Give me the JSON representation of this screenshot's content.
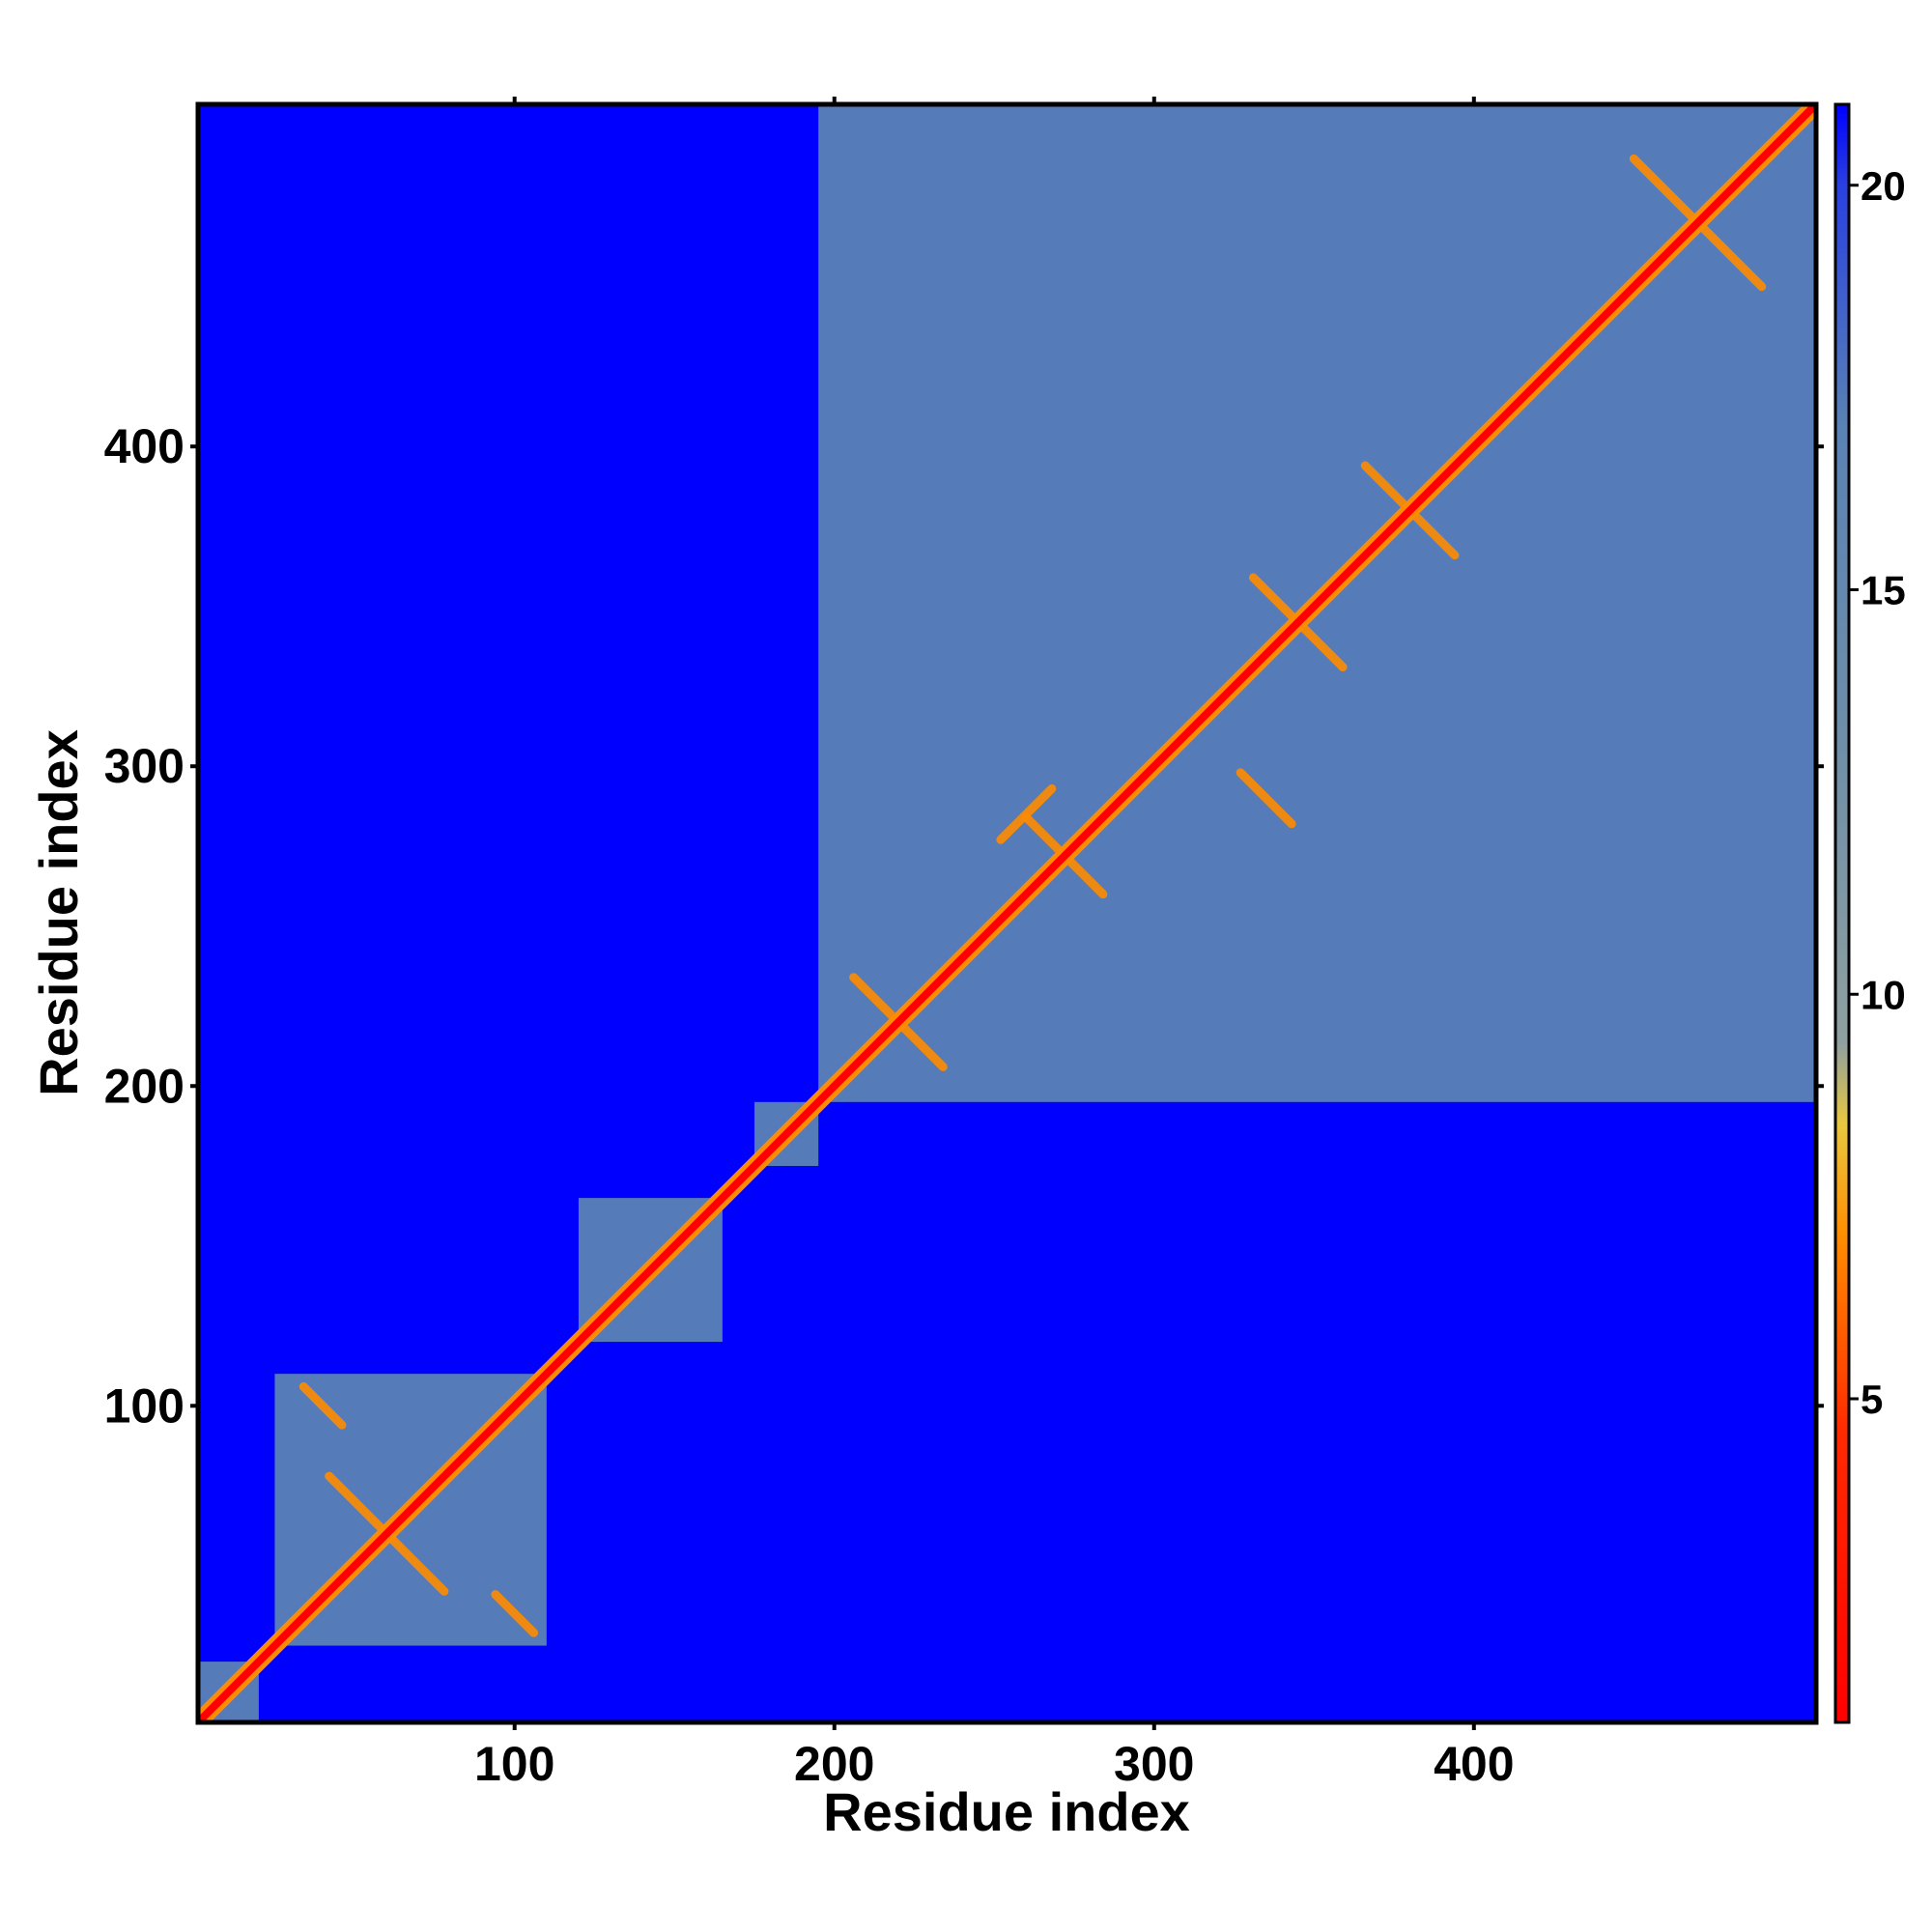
{
  "chart_data": {
    "type": "heatmap",
    "title": "",
    "xlabel": "Residue index",
    "ylabel": "Residue index",
    "xlim": [
      1,
      507
    ],
    "ylim": [
      1,
      507
    ],
    "x_ticks": [
      100,
      200,
      300,
      400
    ],
    "y_ticks": [
      100,
      200,
      300,
      400
    ],
    "grid": false,
    "colorbar": {
      "ticks": [
        5,
        10,
        15,
        20
      ],
      "range": [
        1,
        21
      ],
      "colors": {
        "contact": "#ff0000",
        "near": "#ff8c00",
        "mid": "#e8c840",
        "medium": "#8fa0a0",
        "far": "#5a82b4",
        "background": "#0000ff"
      }
    },
    "diagonal_band": {
      "value": 2
    },
    "domains": [
      {
        "start": 1,
        "end": 20,
        "value": 17
      },
      {
        "start": 25,
        "end": 110,
        "value": 16
      },
      {
        "start": 120,
        "end": 165,
        "value": 15
      },
      {
        "start": 175,
        "end": 195,
        "value": 15
      },
      {
        "start": 195,
        "end": 507,
        "value": 17
      }
    ],
    "strands": [
      {
        "center": [
          60,
          60
        ],
        "half_length": 18,
        "orientation": "anti",
        "value": 4
      },
      {
        "center": [
          220,
          220
        ],
        "half_length": 14,
        "orientation": "anti",
        "value": 4
      },
      {
        "center": [
          272,
          272
        ],
        "half_length": 12,
        "orientation": "anti",
        "value": 4
      },
      {
        "center": [
          345,
          345
        ],
        "half_length": 14,
        "orientation": "anti",
        "value": 4
      },
      {
        "center": [
          380,
          380
        ],
        "half_length": 14,
        "orientation": "anti",
        "value": 6
      },
      {
        "center": [
          470,
          470
        ],
        "half_length": 20,
        "orientation": "anti",
        "value": 5
      },
      {
        "center": [
          100,
          35
        ],
        "half_length": 6,
        "orientation": "anti",
        "value": 5
      },
      {
        "center": [
          40,
          100
        ],
        "half_length": 6,
        "orientation": "anti",
        "value": 5
      },
      {
        "center": [
          260,
          285
        ],
        "half_length": 8,
        "orientation": "parallel",
        "value": 5
      },
      {
        "center": [
          335,
          290
        ],
        "half_length": 8,
        "orientation": "anti",
        "value": 6
      }
    ]
  }
}
